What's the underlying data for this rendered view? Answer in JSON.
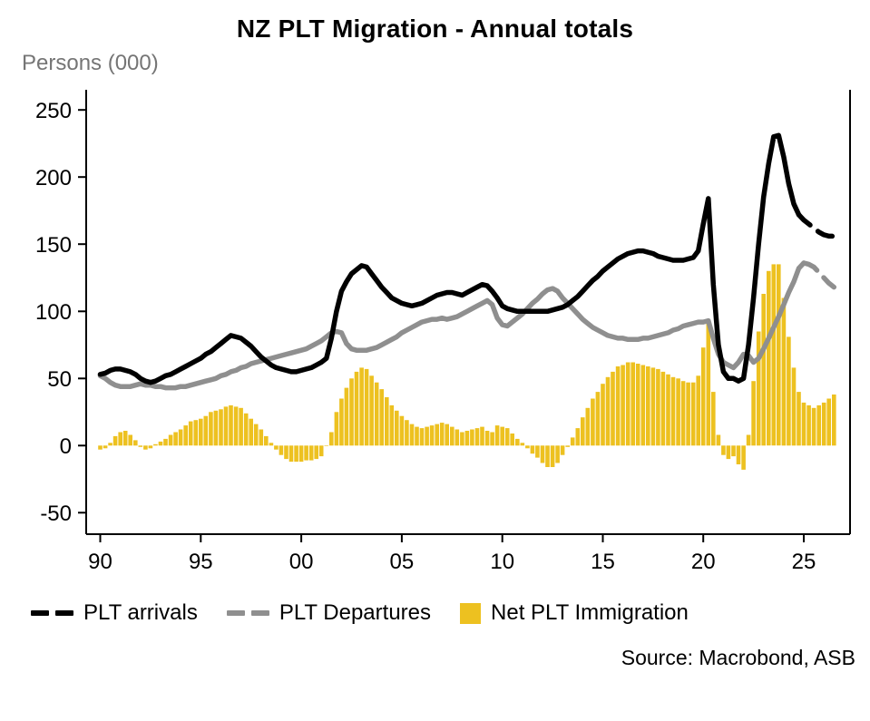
{
  "title": "NZ PLT Migration - Annual totals",
  "unit_label": "Persons (000)",
  "source": "Source: Macrobond, ASB",
  "legend": [
    {
      "label": "PLT arrivals",
      "swatch": "dashed-line",
      "color": "#000000"
    },
    {
      "label": "PLT Departures",
      "swatch": "dashed-line",
      "color": "#8f8f8f"
    },
    {
      "label": "Net PLT Immigration",
      "swatch": "square",
      "color": "#edc120"
    }
  ],
  "chart_data": {
    "type": "mixed-bar-line",
    "title": "NZ PLT Migration - Annual totals",
    "ylabel": "Persons (000)",
    "x_start": 1990,
    "x_step": 0.25,
    "xlim": [
      1989.3,
      2027.3
    ],
    "ylim": [
      -66,
      265
    ],
    "y_ticks": [
      -50,
      0,
      50,
      100,
      150,
      200,
      250
    ],
    "x_tick_positions": [
      1990,
      1995,
      2000,
      2005,
      2010,
      2015,
      2020,
      2025
    ],
    "x_tick_labels": [
      "90",
      "95",
      "00",
      "05",
      "10",
      "15",
      "20",
      "25"
    ],
    "grid": false,
    "legend_position": "bottom",
    "series": [
      {
        "name": "PLT arrivals",
        "type": "line",
        "color": "#000000",
        "forecast_from": 2024.75,
        "values": [
          53,
          54,
          56,
          57,
          57,
          56,
          55,
          53,
          50,
          48,
          47,
          48,
          50,
          52,
          53,
          55,
          57,
          59,
          61,
          63,
          65,
          68,
          70,
          73,
          76,
          79,
          82,
          81,
          80,
          77,
          74,
          70,
          66,
          63,
          60,
          58,
          57,
          56,
          55,
          55,
          56,
          57,
          58,
          60,
          62,
          65,
          80,
          100,
          115,
          122,
          128,
          131,
          134,
          133,
          128,
          123,
          118,
          114,
          110,
          108,
          106,
          105,
          104,
          105,
          106,
          108,
          110,
          112,
          113,
          114,
          114,
          113,
          112,
          114,
          116,
          118,
          120,
          119,
          115,
          110,
          104,
          102,
          101,
          100,
          100,
          100,
          100,
          100,
          100,
          100,
          101,
          102,
          103,
          105,
          108,
          111,
          115,
          119,
          123,
          126,
          130,
          133,
          136,
          139,
          141,
          143,
          144,
          145,
          145,
          144,
          143,
          141,
          140,
          139,
          138,
          138,
          138,
          139,
          140,
          145,
          165,
          184,
          120,
          75,
          55,
          50,
          50,
          48,
          50,
          75,
          110,
          150,
          185,
          210,
          230,
          231,
          215,
          195,
          180,
          172,
          168,
          165,
          162,
          159,
          157,
          156,
          156
        ]
      },
      {
        "name": "PLT Departures",
        "type": "line",
        "color": "#8f8f8f",
        "forecast_from": 2025.0,
        "values": [
          52,
          50,
          47,
          45,
          44,
          44,
          44,
          45,
          46,
          45,
          45,
          44,
          44,
          43,
          43,
          43,
          44,
          44,
          45,
          46,
          47,
          48,
          49,
          50,
          52,
          53,
          55,
          56,
          58,
          59,
          61,
          62,
          63,
          64,
          65,
          66,
          67,
          68,
          69,
          70,
          71,
          72,
          74,
          76,
          78,
          81,
          84,
          85,
          84,
          76,
          72,
          71,
          71,
          71,
          72,
          73,
          75,
          77,
          79,
          81,
          84,
          86,
          88,
          90,
          92,
          93,
          94,
          94,
          95,
          94,
          95,
          96,
          98,
          100,
          102,
          104,
          106,
          108,
          105,
          95,
          90,
          89,
          92,
          95,
          98,
          102,
          106,
          109,
          113,
          116,
          117,
          115,
          110,
          106,
          102,
          98,
          94,
          91,
          88,
          86,
          84,
          82,
          81,
          80,
          80,
          79,
          79,
          79,
          80,
          80,
          81,
          82,
          83,
          84,
          86,
          87,
          89,
          90,
          91,
          92,
          92,
          93,
          80,
          68,
          62,
          60,
          58,
          62,
          68,
          67,
          62,
          65,
          72,
          80,
          88,
          96,
          105,
          114,
          122,
          132,
          136,
          135,
          133,
          129,
          125,
          121,
          118
        ]
      },
      {
        "name": "Net PLT Immigration",
        "type": "bar",
        "color": "#edc120",
        "values": [
          -3,
          -2,
          2,
          7,
          10,
          11,
          8,
          4,
          -1,
          -3,
          -2,
          1,
          3,
          5,
          8,
          10,
          12,
          15,
          18,
          19,
          20,
          22,
          25,
          26,
          27,
          29,
          30,
          29,
          28,
          24,
          20,
          16,
          12,
          7,
          2,
          -3,
          -7,
          -10,
          -12,
          -12,
          -12,
          -11,
          -11,
          -10,
          -8,
          0,
          10,
          25,
          35,
          43,
          50,
          55,
          58,
          57,
          52,
          47,
          42,
          36,
          30,
          26,
          22,
          19,
          16,
          14,
          13,
          14,
          15,
          16,
          17,
          16,
          14,
          12,
          10,
          11,
          12,
          13,
          14,
          11,
          10,
          15,
          14,
          13,
          9,
          5,
          2,
          -2,
          -6,
          -9,
          -13,
          -16,
          -16,
          -13,
          -7,
          -1,
          6,
          13,
          21,
          28,
          35,
          40,
          46,
          51,
          55,
          59,
          60,
          62,
          62,
          61,
          60,
          59,
          58,
          57,
          55,
          53,
          51,
          50,
          48,
          47,
          47,
          52,
          73,
          91,
          40,
          8,
          -7,
          -10,
          -8,
          -14,
          -18,
          8,
          48,
          85,
          113,
          130,
          135,
          135,
          110,
          81,
          58,
          40,
          32,
          30,
          28,
          30,
          32,
          35,
          38
        ]
      }
    ]
  }
}
